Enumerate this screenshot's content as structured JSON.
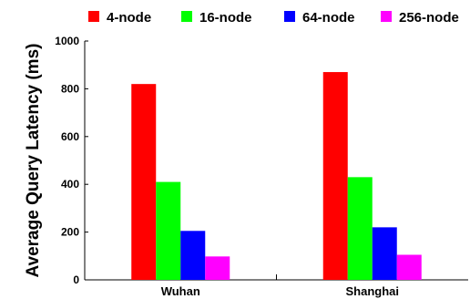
{
  "chart_data": {
    "type": "bar",
    "title": "",
    "xlabel": "",
    "ylabel": "Average Query Latency (ms)",
    "ylim": [
      0,
      1000
    ],
    "yticks": [
      0,
      200,
      400,
      600,
      800,
      1000
    ],
    "grid": false,
    "legend_position": "top",
    "categories": [
      "Wuhan",
      "Shanghai"
    ],
    "series": [
      {
        "name": "4-node",
        "color": "#ff0000",
        "values": [
          820,
          870
        ]
      },
      {
        "name": "16-node",
        "color": "#00ff00",
        "values": [
          410,
          430
        ]
      },
      {
        "name": "64-node",
        "color": "#0000ff",
        "values": [
          205,
          220
        ]
      },
      {
        "name": "256-node",
        "color": "#ff00ff",
        "values": [
          98,
          105
        ]
      }
    ]
  }
}
